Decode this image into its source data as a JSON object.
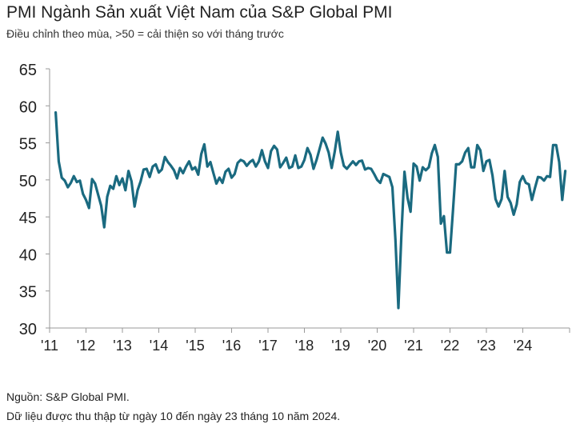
{
  "header": {
    "title": "PMI Ngành Sản xuất Việt Nam của S&P Global PMI",
    "subtitle": "Điều chỉnh theo mùa, >50 = cải thiện so với tháng trước"
  },
  "footer": {
    "source": "Nguồn: S&P Global PMI.",
    "note": "Dữ liệu được thu thập từ ngày 10 đến ngày 23 tháng 10 năm 2024."
  },
  "colors": {
    "line": "#1a6a80",
    "axis": "#999999",
    "text": "#222222"
  },
  "chart_data": {
    "type": "line",
    "ylim": [
      30,
      65
    ],
    "yticks": [
      30,
      35,
      40,
      45,
      50,
      55,
      60,
      65
    ],
    "xticks": [
      "'11",
      "'12",
      "'13",
      "'14",
      "'15",
      "'16",
      "'17",
      "'18",
      "'19",
      "'20",
      "'21",
      "'22",
      "'23",
      "'24"
    ],
    "x_start": "2011-03",
    "x_end": "2024-10",
    "grid": false,
    "series": [
      {
        "values": [
          59.1,
          52.5,
          50.3,
          49.9,
          49.0,
          49.6,
          50.5,
          49.7,
          49.9,
          48.1,
          47.3,
          46.2,
          50.1,
          49.5,
          48.0,
          46.5,
          43.6,
          47.7,
          49.2,
          48.8,
          50.5,
          49.3,
          50.2,
          48.6,
          51.2,
          49.8,
          46.4,
          48.6,
          49.8,
          51.4,
          51.5,
          50.4,
          51.8,
          52.1,
          51.0,
          51.4,
          53.1,
          52.4,
          51.9,
          51.3,
          50.2,
          51.6,
          50.9,
          51.8,
          52.5,
          51.4,
          51.7,
          50.7,
          53.5,
          54.8,
          51.8,
          52.4,
          50.9,
          49.5,
          50.3,
          49.6,
          51.1,
          51.5,
          50.3,
          50.8,
          52.3,
          52.7,
          52.5,
          51.9,
          52.4,
          52.7,
          51.8,
          52.5,
          54.0,
          52.5,
          51.6,
          53.9,
          54.6,
          54.1,
          51.7,
          52.3,
          53.0,
          51.6,
          51.8,
          53.3,
          51.6,
          51.8,
          52.7,
          54.3,
          53.4,
          51.5,
          52.7,
          54.2,
          55.7,
          54.9,
          53.7,
          51.6,
          53.8,
          56.5,
          53.7,
          51.9,
          51.5,
          52.0,
          52.5,
          52.0,
          52.5,
          52.6,
          51.4,
          51.6,
          51.5,
          50.8,
          50.0,
          49.6,
          50.8,
          50.6,
          50.4,
          49.0,
          41.9,
          32.7,
          42.7,
          51.1,
          47.6,
          45.7,
          52.2,
          51.8,
          49.9,
          51.7,
          51.3,
          51.7,
          53.6,
          54.7,
          53.1,
          44.1,
          45.1,
          40.2,
          40.2,
          46.0,
          52.1,
          52.1,
          52.5,
          53.7,
          54.3,
          51.7,
          51.7,
          54.7,
          54.0,
          51.2,
          52.5,
          52.7,
          50.6,
          47.4,
          46.4,
          47.4,
          51.2,
          47.7,
          46.9,
          45.3,
          46.7,
          49.7,
          50.5,
          49.6,
          49.4,
          47.3,
          48.9,
          50.4,
          50.3,
          49.9,
          50.5,
          50.4,
          54.7,
          54.7,
          52.4,
          47.3,
          51.2
        ]
      }
    ]
  }
}
